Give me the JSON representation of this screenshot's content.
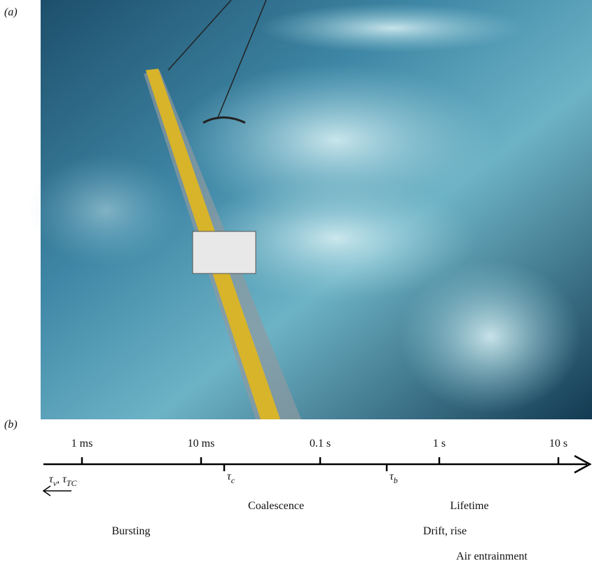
{
  "panels": {
    "a": "(a)",
    "b": "(b)"
  },
  "timescale": {
    "ticks": [
      "1 ms",
      "10 ms",
      "0.1 s",
      "1 s",
      "10 s"
    ],
    "markers": {
      "viscous": {
        "symbol": "τ",
        "subscript": "v",
        "separator": ", ",
        "symbol2": "τ",
        "subscript2": "TC"
      },
      "coalescence": {
        "symbol": "τ",
        "subscript": "c"
      },
      "bubble": {
        "symbol": "τ",
        "subscript": "b"
      }
    },
    "processes": [
      "Coalescence",
      "Lifetime",
      "Bursting",
      "Drift, rise",
      "Air entrainment"
    ]
  }
}
